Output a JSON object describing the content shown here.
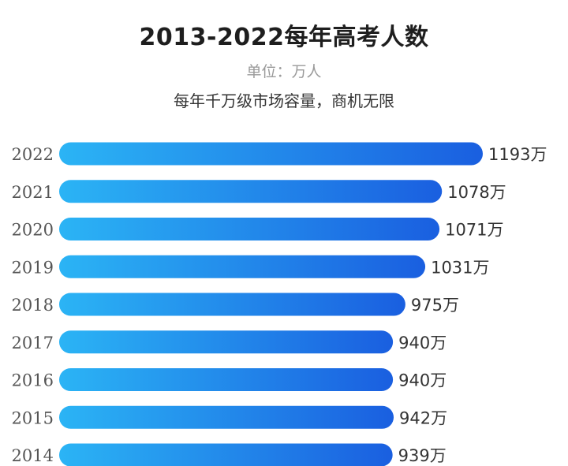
{
  "header": {
    "title": "2013-2022每年高考人数",
    "unit": "单位：万人",
    "tagline": "每年千万级市场容量，商机无限"
  },
  "chart_data": {
    "type": "bar",
    "orientation": "horizontal",
    "title": "2013-2022每年高考人数",
    "unit": "万人",
    "value_suffix": "万",
    "categories": [
      "2022",
      "2021",
      "2020",
      "2019",
      "2018",
      "2017",
      "2016",
      "2015",
      "2014"
    ],
    "values": [
      1193,
      1078,
      1071,
      1031,
      975,
      940,
      940,
      942,
      939
    ],
    "colors": {
      "bar_start": "#2bb4f5",
      "bar_end": "#1a5fe0",
      "label": "#333333"
    }
  }
}
